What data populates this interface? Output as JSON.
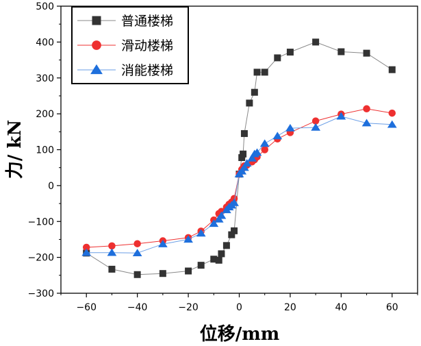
{
  "chart_data": {
    "type": "line",
    "title": "",
    "xlabel": "位移/mm",
    "ylabel": "力/ kN",
    "xlim": [
      -70,
      70
    ],
    "ylim": [
      -300,
      500
    ],
    "x_ticks": [
      -60,
      -40,
      -20,
      0,
      20,
      40,
      60
    ],
    "y_ticks": [
      -300,
      -200,
      -100,
      0,
      100,
      200,
      300,
      400,
      500
    ],
    "x_tick_labels": [
      "−60",
      "−40",
      "−20",
      "0",
      "20",
      "40",
      "60"
    ],
    "y_tick_labels": [
      "−300",
      "−200",
      "−100",
      "0",
      "100",
      "200",
      "300",
      "400",
      "500"
    ],
    "legend_position": "top-left",
    "series": [
      {
        "name": "普通楼梯",
        "marker": "square",
        "color": "#333333",
        "line_color": "#888888",
        "x": [
          -60,
          -50,
          -40,
          -30,
          -20,
          -15,
          -10,
          -8,
          -7,
          -5,
          -3,
          -2,
          0,
          1,
          1.5,
          2,
          4,
          6,
          7,
          10,
          15,
          20,
          30,
          40,
          50,
          60
        ],
        "y": [
          -188,
          -233,
          -248,
          -245,
          -238,
          -222,
          -205,
          -208,
          -190,
          -167,
          -137,
          -126,
          32,
          78,
          88,
          145,
          230,
          260,
          316,
          316,
          356,
          372,
          400,
          373,
          369,
          323
        ]
      },
      {
        "name": "滑动楼梯",
        "marker": "circle",
        "color": "#ee3030",
        "line_color": "#ee3030",
        "x": [
          -60,
          -50,
          -40,
          -30,
          -20,
          -15,
          -10,
          -8,
          -7,
          -5,
          -4,
          -3,
          -2,
          0,
          1,
          2,
          3,
          5,
          6,
          7,
          10,
          15,
          20,
          30,
          40,
          50,
          60
        ],
        "y": [
          -172,
          -168,
          -162,
          -154,
          -145,
          -127,
          -96,
          -78,
          -72,
          -60,
          -52,
          -46,
          -36,
          32,
          45,
          55,
          57,
          66,
          72,
          80,
          100,
          130,
          148,
          180,
          199,
          214,
          202
        ]
      },
      {
        "name": "消能楼梯",
        "marker": "triangle",
        "color": "#1e6fdc",
        "line_color": "#6a9ee6",
        "x": [
          -60,
          -50,
          -40,
          -30,
          -20,
          -15,
          -10,
          -8,
          -7,
          -5,
          -4,
          -3,
          -2,
          0,
          1,
          2,
          3,
          5,
          6,
          7,
          10,
          15,
          20,
          30,
          40,
          50,
          60
        ],
        "y": [
          -187,
          -187,
          -188,
          -163,
          -150,
          -133,
          -106,
          -94,
          -84,
          -68,
          -60,
          -55,
          -48,
          32,
          40,
          50,
          62,
          76,
          88,
          92,
          117,
          138,
          160,
          162,
          193,
          174,
          170
        ]
      }
    ]
  }
}
